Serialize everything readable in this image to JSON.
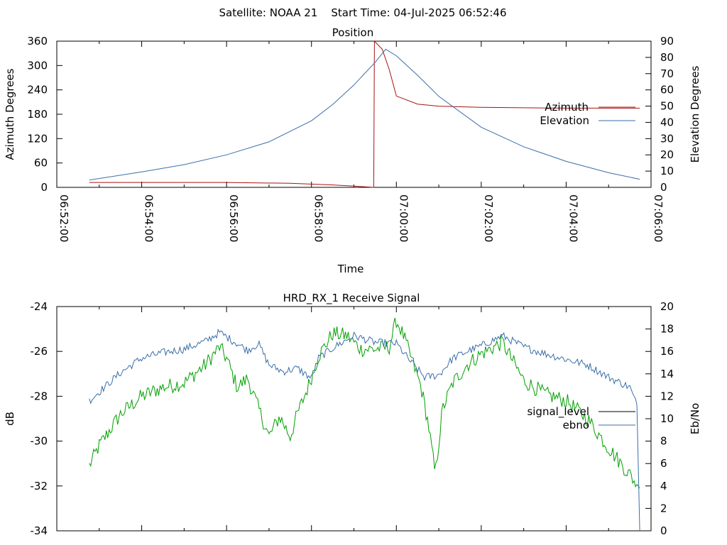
{
  "header": "Satellite: NOAA 21    Start Time: 04-Jul-2025 06:52:46",
  "colors": {
    "azimuth": "#aa1111",
    "elevation": "#3a6ea8",
    "signal_level": "#00a000",
    "ebno": "#3a6ea8",
    "legend_signal": "#000000"
  },
  "chart_data": [
    {
      "type": "line",
      "title": "Position",
      "xlabel": "Time",
      "ylabel": "Azimuth Degrees",
      "y2label": "Elevation Degrees",
      "xlim": [
        "06:52:00",
        "07:06:00"
      ],
      "ylim": [
        0,
        360
      ],
      "y2lim": [
        0,
        90
      ],
      "xticks": [
        "06:52:00",
        "06:54:00",
        "06:56:00",
        "06:58:00",
        "07:00:00",
        "07:02:00",
        "07:04:00",
        "07:06:00"
      ],
      "yticks": [
        "0",
        "60",
        "120",
        "180",
        "240",
        "300",
        "360"
      ],
      "y2ticks": [
        "0",
        "10",
        "20",
        "30",
        "40",
        "50",
        "60",
        "70",
        "80",
        "90"
      ],
      "legend_position": "right",
      "series": [
        {
          "name": "Azimuth",
          "axis": "y",
          "x": [
            "06:52:46",
            "06:54:00",
            "06:56:00",
            "06:57:30",
            "06:58:30",
            "06:59:00",
            "06:59:28",
            "06:59:29",
            "06:59:40",
            "06:59:50",
            "07:00:00",
            "07:00:30",
            "07:01:00",
            "07:02:00",
            "07:04:00",
            "07:05:44"
          ],
          "y": [
            12,
            12,
            12,
            10,
            6,
            3,
            0,
            360,
            340,
            290,
            225,
            205,
            200,
            197,
            195,
            195
          ]
        },
        {
          "name": "Elevation",
          "axis": "y2",
          "x": [
            "06:52:46",
            "06:54:00",
            "06:55:00",
            "06:56:00",
            "06:57:00",
            "06:58:00",
            "06:58:30",
            "06:59:00",
            "06:59:30",
            "06:59:45",
            "07:00:00",
            "07:00:30",
            "07:01:00",
            "07:02:00",
            "07:03:00",
            "07:04:00",
            "07:05:00",
            "07:05:44"
          ],
          "y": [
            4.5,
            9.5,
            14,
            20,
            28,
            41,
            51,
            63,
            77,
            85,
            81,
            69,
            56,
            37,
            25,
            16,
            9,
            5
          ]
        }
      ]
    },
    {
      "type": "line",
      "title": "HRD_RX_1 Receive Signal",
      "xlabel": "",
      "ylabel": "dB",
      "y2label": "Eb/No",
      "xlim": [
        "06:52:00",
        "07:06:00"
      ],
      "ylim": [
        -34,
        -24
      ],
      "y2lim": [
        0,
        20
      ],
      "yticks": [
        "-34",
        "-32",
        "-30",
        "-28",
        "-26",
        "-24"
      ],
      "y2ticks": [
        "0",
        "2",
        "4",
        "6",
        "8",
        "10",
        "12",
        "14",
        "16",
        "18",
        "20"
      ],
      "legend_position": "right",
      "series": [
        {
          "name": "signal_level",
          "axis": "y",
          "x": [
            "06:52:46",
            "06:53:00",
            "06:53:30",
            "06:54:00",
            "06:54:30",
            "06:55:00",
            "06:55:30",
            "06:55:50",
            "06:56:00",
            "06:56:15",
            "06:56:30",
            "06:56:40",
            "06:57:00",
            "06:57:15",
            "06:57:30",
            "06:57:40",
            "06:57:55",
            "06:58:10",
            "06:58:30",
            "06:58:50",
            "06:59:10",
            "06:59:30",
            "06:59:50",
            "07:00:00",
            "07:00:10",
            "07:00:20",
            "07:00:35",
            "07:00:45",
            "07:00:55",
            "07:01:05",
            "07:01:20",
            "07:01:40",
            "07:02:00",
            "07:02:30",
            "07:03:00",
            "07:03:30",
            "07:04:00",
            "07:04:30",
            "07:05:00",
            "07:05:30",
            "07:05:44"
          ],
          "y": [
            -31.1,
            -30.2,
            -28.8,
            -28.0,
            -27.6,
            -27.4,
            -26.6,
            -25.8,
            -26.3,
            -27.6,
            -27.2,
            -28.1,
            -29.8,
            -28.9,
            -29.8,
            -28.8,
            -27.6,
            -26.2,
            -25.2,
            -25.3,
            -25.9,
            -25.9,
            -25.8,
            -24.6,
            -25.3,
            -26.2,
            -27.6,
            -29.2,
            -31.5,
            -28.6,
            -27.4,
            -26.6,
            -26.1,
            -25.6,
            -27.3,
            -27.9,
            -28.2,
            -29.0,
            -30.3,
            -31.5,
            -32.1
          ]
        },
        {
          "name": "ebno",
          "axis": "y2",
          "x": [
            "06:52:46",
            "06:53:00",
            "06:53:30",
            "06:54:00",
            "06:54:30",
            "06:55:00",
            "06:55:30",
            "06:55:50",
            "06:56:10",
            "06:56:30",
            "06:56:45",
            "06:57:00",
            "06:57:20",
            "06:57:40",
            "06:58:00",
            "06:58:10",
            "06:58:30",
            "06:59:00",
            "06:59:30",
            "07:00:00",
            "07:00:20",
            "07:00:40",
            "07:01:00",
            "07:01:20",
            "07:01:40",
            "07:02:00",
            "07:02:30",
            "07:03:00",
            "07:03:30",
            "07:04:00",
            "07:04:30",
            "07:05:00",
            "07:05:30",
            "07:05:40",
            "07:05:44"
          ],
          "y": [
            11.6,
            12.4,
            14.1,
            15.4,
            15.9,
            16.2,
            16.9,
            17.7,
            16.9,
            16.1,
            16.7,
            14.8,
            14.2,
            14.5,
            13.6,
            15.4,
            16.3,
            17.4,
            16.8,
            16.7,
            15.1,
            13.7,
            13.9,
            15.4,
            16.0,
            16.5,
            17.4,
            16.4,
            15.8,
            15.3,
            14.8,
            13.7,
            12.8,
            11.2,
            0.0
          ]
        }
      ]
    }
  ]
}
